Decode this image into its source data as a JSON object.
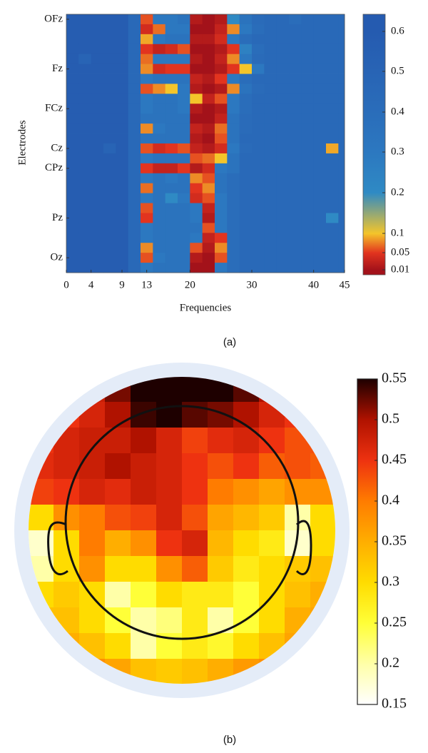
{
  "chart_data": [
    {
      "type": "heatmap",
      "xlabel": "Frequencies",
      "ylabel": "Electrodes",
      "caption": "(a)",
      "x": [
        0,
        2,
        4,
        6,
        8,
        10,
        12,
        14,
        16,
        18,
        20,
        22,
        24,
        26,
        28,
        30,
        32,
        34,
        36,
        38,
        40,
        42,
        44
      ],
      "xlim": [
        0,
        45
      ],
      "xticks": [
        0,
        4,
        9,
        13,
        20,
        30,
        40,
        45
      ],
      "categories": [
        "OFz",
        null,
        null,
        null,
        null,
        "Fz",
        null,
        null,
        null,
        "FCz",
        null,
        null,
        null,
        "Cz",
        null,
        "CPz",
        null,
        null,
        null,
        null,
        "Pz",
        null,
        null,
        null,
        "Oz",
        null
      ],
      "z": [
        [
          0.58,
          0.58,
          0.58,
          0.58,
          0.58,
          0.45,
          0.06,
          0.3,
          0.3,
          0.35,
          0.02,
          0.01,
          0.02,
          0.2,
          0.35,
          0.42,
          0.45,
          0.45,
          0.4,
          0.45,
          0.45,
          0.45,
          0.45
        ],
        [
          0.58,
          0.58,
          0.58,
          0.58,
          0.58,
          0.45,
          0.04,
          0.07,
          0.3,
          0.3,
          0.01,
          0.01,
          0.03,
          0.08,
          0.3,
          0.4,
          0.45,
          0.45,
          0.45,
          0.45,
          0.45,
          0.45,
          0.45
        ],
        [
          0.58,
          0.58,
          0.58,
          0.58,
          0.58,
          0.45,
          0.09,
          0.3,
          0.35,
          0.35,
          0.02,
          0.02,
          0.04,
          0.3,
          0.4,
          0.45,
          0.45,
          0.45,
          0.45,
          0.45,
          0.45,
          0.45,
          0.45
        ],
        [
          0.58,
          0.58,
          0.58,
          0.58,
          0.58,
          0.45,
          0.05,
          0.03,
          0.04,
          0.06,
          0.01,
          0.01,
          0.02,
          0.05,
          0.25,
          0.4,
          0.45,
          0.45,
          0.45,
          0.45,
          0.45,
          0.45,
          0.45
        ],
        [
          0.58,
          0.5,
          0.58,
          0.58,
          0.58,
          0.45,
          0.07,
          0.3,
          0.3,
          0.3,
          0.02,
          0.01,
          0.03,
          0.08,
          0.3,
          0.42,
          0.45,
          0.45,
          0.45,
          0.45,
          0.45,
          0.45,
          0.45
        ],
        [
          0.58,
          0.58,
          0.58,
          0.58,
          0.58,
          0.45,
          0.08,
          0.04,
          0.05,
          0.05,
          0.01,
          0.01,
          0.02,
          0.05,
          0.1,
          0.3,
          0.45,
          0.45,
          0.45,
          0.45,
          0.45,
          0.45,
          0.45
        ],
        [
          0.58,
          0.58,
          0.58,
          0.58,
          0.58,
          0.45,
          0.3,
          0.35,
          0.35,
          0.35,
          0.03,
          0.02,
          0.05,
          0.3,
          0.4,
          0.45,
          0.45,
          0.45,
          0.45,
          0.45,
          0.45,
          0.45,
          0.45
        ],
        [
          0.58,
          0.58,
          0.58,
          0.58,
          0.58,
          0.45,
          0.06,
          0.08,
          0.1,
          0.3,
          0.02,
          0.01,
          0.02,
          0.08,
          0.35,
          0.42,
          0.45,
          0.45,
          0.45,
          0.45,
          0.45,
          0.45,
          0.45
        ],
        [
          0.58,
          0.58,
          0.58,
          0.58,
          0.58,
          0.45,
          0.3,
          0.35,
          0.35,
          0.3,
          0.1,
          0.03,
          0.06,
          0.3,
          0.4,
          0.45,
          0.45,
          0.45,
          0.45,
          0.45,
          0.45,
          0.45,
          0.45
        ],
        [
          0.58,
          0.58,
          0.58,
          0.58,
          0.58,
          0.45,
          0.3,
          0.35,
          0.35,
          0.3,
          0.02,
          0.01,
          0.02,
          0.3,
          0.4,
          0.45,
          0.45,
          0.45,
          0.45,
          0.45,
          0.45,
          0.45,
          0.45
        ],
        [
          0.58,
          0.58,
          0.58,
          0.58,
          0.58,
          0.45,
          0.35,
          0.35,
          0.35,
          0.35,
          0.01,
          0.01,
          0.03,
          0.35,
          0.42,
          0.45,
          0.45,
          0.45,
          0.45,
          0.45,
          0.45,
          0.45,
          0.45
        ],
        [
          0.58,
          0.58,
          0.58,
          0.58,
          0.58,
          0.45,
          0.08,
          0.3,
          0.35,
          0.35,
          0.03,
          0.02,
          0.07,
          0.35,
          0.42,
          0.45,
          0.45,
          0.45,
          0.45,
          0.45,
          0.45,
          0.45,
          0.45
        ],
        [
          0.58,
          0.58,
          0.58,
          0.58,
          0.58,
          0.45,
          0.35,
          0.35,
          0.35,
          0.35,
          0.02,
          0.01,
          0.06,
          0.35,
          0.45,
          0.45,
          0.45,
          0.45,
          0.45,
          0.45,
          0.45,
          0.45,
          0.45
        ],
        [
          0.58,
          0.58,
          0.58,
          0.5,
          0.58,
          0.45,
          0.06,
          0.04,
          0.05,
          0.06,
          0.03,
          0.02,
          0.04,
          0.3,
          0.42,
          0.45,
          0.45,
          0.45,
          0.45,
          0.45,
          0.45,
          0.09,
          0.45
        ],
        [
          0.58,
          0.58,
          0.58,
          0.58,
          0.58,
          0.45,
          0.3,
          0.35,
          0.35,
          0.35,
          0.06,
          0.07,
          0.1,
          0.35,
          0.45,
          0.45,
          0.45,
          0.45,
          0.45,
          0.45,
          0.45,
          0.45,
          0.45
        ],
        [
          0.58,
          0.58,
          0.58,
          0.58,
          0.58,
          0.45,
          0.05,
          0.03,
          0.03,
          0.05,
          0.02,
          0.04,
          0.3,
          0.35,
          0.45,
          0.45,
          0.45,
          0.45,
          0.45,
          0.45,
          0.45,
          0.45,
          0.45
        ],
        [
          0.58,
          0.58,
          0.58,
          0.58,
          0.58,
          0.45,
          0.3,
          0.35,
          0.3,
          0.35,
          0.08,
          0.06,
          0.35,
          0.4,
          0.45,
          0.45,
          0.45,
          0.45,
          0.45,
          0.45,
          0.45,
          0.45,
          0.45
        ],
        [
          0.58,
          0.58,
          0.58,
          0.58,
          0.58,
          0.45,
          0.07,
          0.35,
          0.35,
          0.35,
          0.05,
          0.08,
          0.35,
          0.4,
          0.45,
          0.45,
          0.45,
          0.45,
          0.45,
          0.45,
          0.45,
          0.45,
          0.45
        ],
        [
          0.58,
          0.58,
          0.58,
          0.58,
          0.58,
          0.45,
          0.3,
          0.35,
          0.2,
          0.3,
          0.04,
          0.06,
          0.3,
          0.4,
          0.45,
          0.45,
          0.45,
          0.45,
          0.45,
          0.45,
          0.45,
          0.45,
          0.45
        ],
        [
          0.58,
          0.58,
          0.58,
          0.58,
          0.58,
          0.45,
          0.06,
          0.35,
          0.35,
          0.35,
          0.3,
          0.03,
          0.3,
          0.4,
          0.45,
          0.45,
          0.45,
          0.45,
          0.45,
          0.45,
          0.45,
          0.45,
          0.45
        ],
        [
          0.58,
          0.58,
          0.58,
          0.58,
          0.58,
          0.45,
          0.05,
          0.35,
          0.35,
          0.35,
          0.3,
          0.02,
          0.3,
          0.4,
          0.45,
          0.45,
          0.45,
          0.45,
          0.45,
          0.45,
          0.45,
          0.2,
          0.45
        ],
        [
          0.58,
          0.58,
          0.58,
          0.58,
          0.58,
          0.45,
          0.3,
          0.35,
          0.35,
          0.35,
          0.35,
          0.06,
          0.3,
          0.4,
          0.45,
          0.45,
          0.45,
          0.45,
          0.45,
          0.45,
          0.45,
          0.45,
          0.45
        ],
        [
          0.58,
          0.58,
          0.58,
          0.58,
          0.58,
          0.45,
          0.3,
          0.35,
          0.35,
          0.35,
          0.3,
          0.03,
          0.05,
          0.4,
          0.45,
          0.45,
          0.45,
          0.45,
          0.45,
          0.45,
          0.45,
          0.45,
          0.45
        ],
        [
          0.58,
          0.58,
          0.58,
          0.58,
          0.58,
          0.45,
          0.08,
          0.35,
          0.35,
          0.35,
          0.06,
          0.02,
          0.08,
          0.4,
          0.45,
          0.45,
          0.45,
          0.45,
          0.45,
          0.45,
          0.45,
          0.45,
          0.45
        ],
        [
          0.58,
          0.58,
          0.58,
          0.58,
          0.58,
          0.45,
          0.06,
          0.3,
          0.35,
          0.35,
          0.02,
          0.01,
          0.06,
          0.4,
          0.45,
          0.45,
          0.45,
          0.45,
          0.45,
          0.45,
          0.45,
          0.45,
          0.45
        ],
        [
          0.58,
          0.58,
          0.58,
          0.58,
          0.58,
          0.45,
          0.3,
          0.35,
          0.35,
          0.35,
          0.01,
          0.01,
          0.3,
          0.4,
          0.45,
          0.45,
          0.45,
          0.45,
          0.45,
          0.45,
          0.45,
          0.45,
          0.45
        ]
      ],
      "colorbar": {
        "ticks": [
          0.01,
          0.05,
          0.1,
          0.2,
          0.3,
          0.4,
          0.5,
          0.6
        ],
        "colors": [
          "#a3121a",
          "#e2341f",
          "#f4c52a",
          "#2f8ac4",
          "#2c78c0",
          "#2a6dba",
          "#2864b5",
          "#255bb0"
        ]
      }
    },
    {
      "type": "topomap",
      "caption": "(b)",
      "z": [
        [
          0.45,
          0.45,
          0.48,
          0.52,
          0.55,
          0.55,
          0.55,
          0.55,
          0.53,
          0.5,
          0.45,
          0.45
        ],
        [
          0.45,
          0.45,
          0.47,
          0.5,
          0.54,
          0.55,
          0.53,
          0.52,
          0.5,
          0.47,
          0.45,
          0.44
        ],
        [
          0.45,
          0.47,
          0.48,
          0.48,
          0.5,
          0.47,
          0.44,
          0.46,
          0.47,
          0.45,
          0.43,
          0.43
        ],
        [
          0.46,
          0.47,
          0.48,
          0.5,
          0.48,
          0.47,
          0.45,
          0.43,
          0.45,
          0.42,
          0.43,
          0.42
        ],
        [
          0.44,
          0.45,
          0.47,
          0.46,
          0.48,
          0.47,
          0.45,
          0.4,
          0.38,
          0.36,
          0.38,
          0.38
        ],
        [
          0.3,
          0.38,
          0.4,
          0.43,
          0.44,
          0.47,
          0.43,
          0.36,
          0.34,
          0.32,
          0.2,
          0.3
        ],
        [
          0.18,
          0.3,
          0.4,
          0.35,
          0.38,
          0.45,
          0.47,
          0.34,
          0.3,
          0.28,
          0.18,
          0.3
        ],
        [
          0.2,
          0.3,
          0.38,
          0.3,
          0.3,
          0.38,
          0.42,
          0.32,
          0.28,
          0.3,
          0.32,
          0.33
        ],
        [
          0.3,
          0.32,
          0.3,
          0.2,
          0.25,
          0.3,
          0.28,
          0.28,
          0.25,
          0.3,
          0.33,
          0.35
        ],
        [
          0.33,
          0.33,
          0.3,
          0.25,
          0.2,
          0.22,
          0.28,
          0.2,
          0.25,
          0.3,
          0.35,
          0.36
        ],
        [
          0.35,
          0.35,
          0.33,
          0.3,
          0.2,
          0.25,
          0.28,
          0.26,
          0.3,
          0.33,
          0.36,
          0.36
        ],
        [
          0.37,
          0.38,
          0.38,
          0.36,
          0.33,
          0.32,
          0.33,
          0.35,
          0.37,
          0.38,
          0.38,
          0.38
        ]
      ],
      "colorbar": {
        "ticks": [
          0.15,
          0.2,
          0.25,
          0.3,
          0.35,
          0.4,
          0.45,
          0.5,
          0.55
        ],
        "colors": [
          "#ffffff",
          "#ffffa8",
          "#ffff38",
          "#ffdc00",
          "#ffae00",
          "#ff7c00",
          "#ee3210",
          "#b01200",
          "#1e0000"
        ]
      }
    }
  ]
}
